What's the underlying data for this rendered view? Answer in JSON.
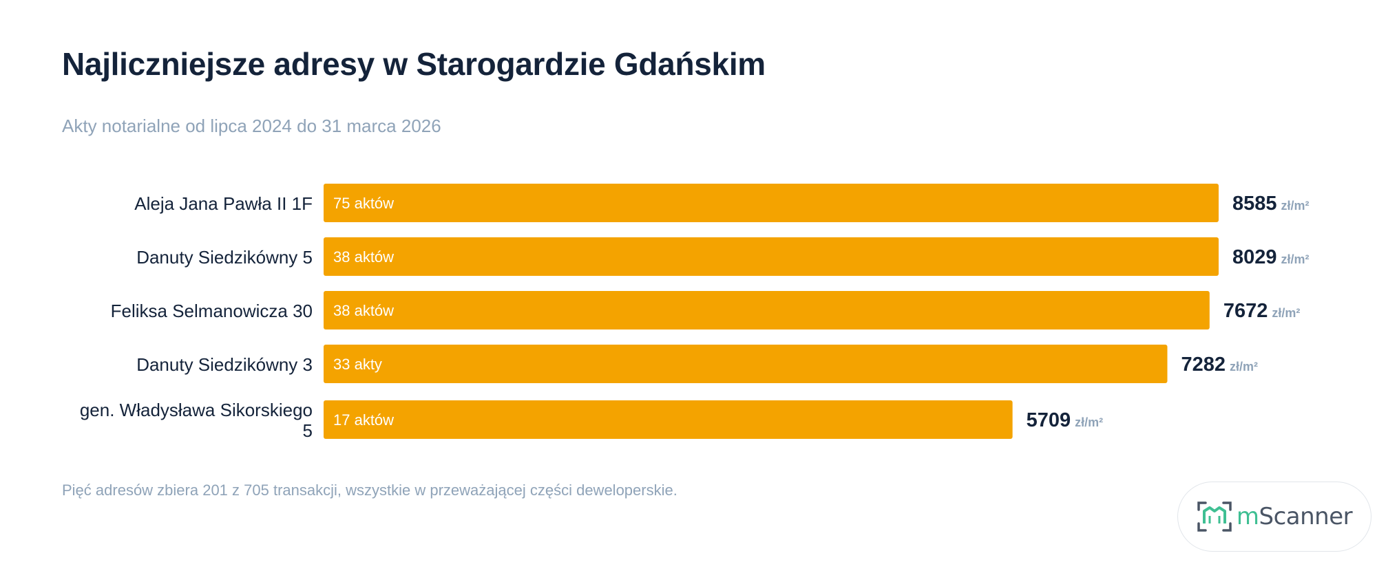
{
  "header": {
    "title": "Najliczniejsze adresy w Starogardzie Gdańskim",
    "subtitle": "Akty notarialne od lipca 2024 do 31 marca 2026"
  },
  "footer": {
    "note": "Pięć adresów zbiera 201 z 705 transakcji, wszystkie w przeważającej części deweloperskie."
  },
  "brand": {
    "logo_m": "m",
    "logo_rest": "Scanner",
    "accent_color": "#3fbf93"
  },
  "chart_data": {
    "type": "bar",
    "orientation": "horizontal",
    "value_unit": "zł/m²",
    "bar_color": "#f4a300",
    "categories": [
      [
        "Aleja Jana Pawła II 1F"
      ],
      [
        "Danuty Siedzikówny 5"
      ],
      [
        "Feliksa Selmanowicza 30"
      ],
      [
        "Danuty Siedzikówny 3"
      ],
      [
        "gen. Władysława Sikorskiego",
        "5"
      ]
    ],
    "bar_labels": [
      "75 aktów",
      "38 aktów",
      "38 aktów",
      "33 akty",
      "17 aktów"
    ],
    "values": [
      8585,
      8029,
      7672,
      7282,
      5709
    ],
    "bar_values": [
      8585,
      8585,
      8498,
      8093,
      6608
    ],
    "xlim": [
      0,
      8585
    ],
    "grid": false,
    "legend": "none"
  }
}
